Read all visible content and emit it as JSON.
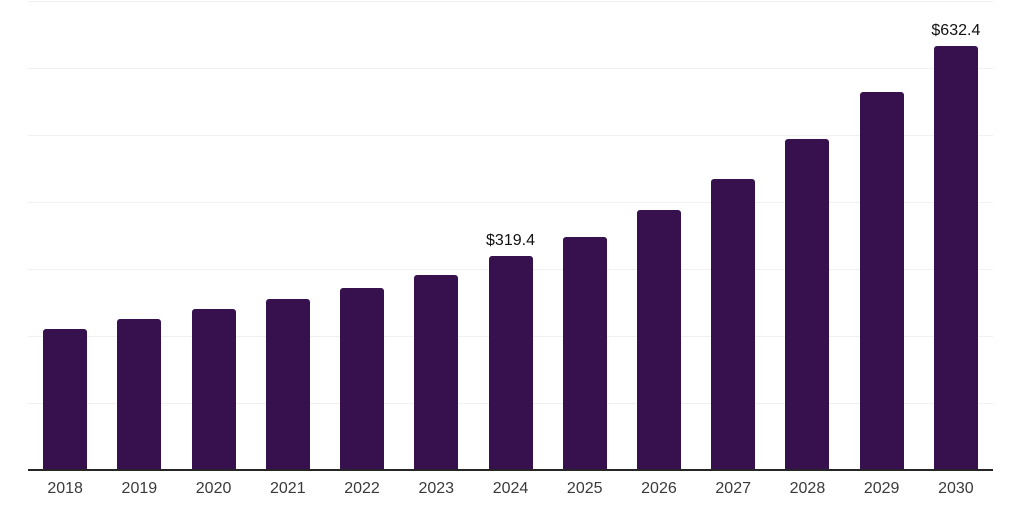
{
  "colors": {
    "background": "#ffffff",
    "bar": "#36114e",
    "axis_line": "#262626",
    "gridline": "#f0f0f0",
    "tick_label": "#3a3a3a",
    "value_label": "#111111"
  },
  "chart_data": {
    "type": "bar",
    "title": "",
    "xlabel": "",
    "ylabel": "",
    "ylim": [
      0,
      700
    ],
    "grid": true,
    "gridline_interval": 100,
    "legend": false,
    "categories": [
      "2018",
      "2019",
      "2020",
      "2021",
      "2022",
      "2023",
      "2024",
      "2025",
      "2026",
      "2027",
      "2028",
      "2029",
      "2030"
    ],
    "values": [
      210.4,
      225.8,
      240.7,
      255.6,
      271.9,
      291.8,
      319.4,
      348.5,
      388.7,
      435.0,
      494.6,
      564.6,
      632.4
    ],
    "data_labels": [
      "",
      "",
      "",
      "",
      "",
      "",
      "$319.4",
      "",
      "",
      "",
      "",
      "",
      "$632.4"
    ]
  }
}
